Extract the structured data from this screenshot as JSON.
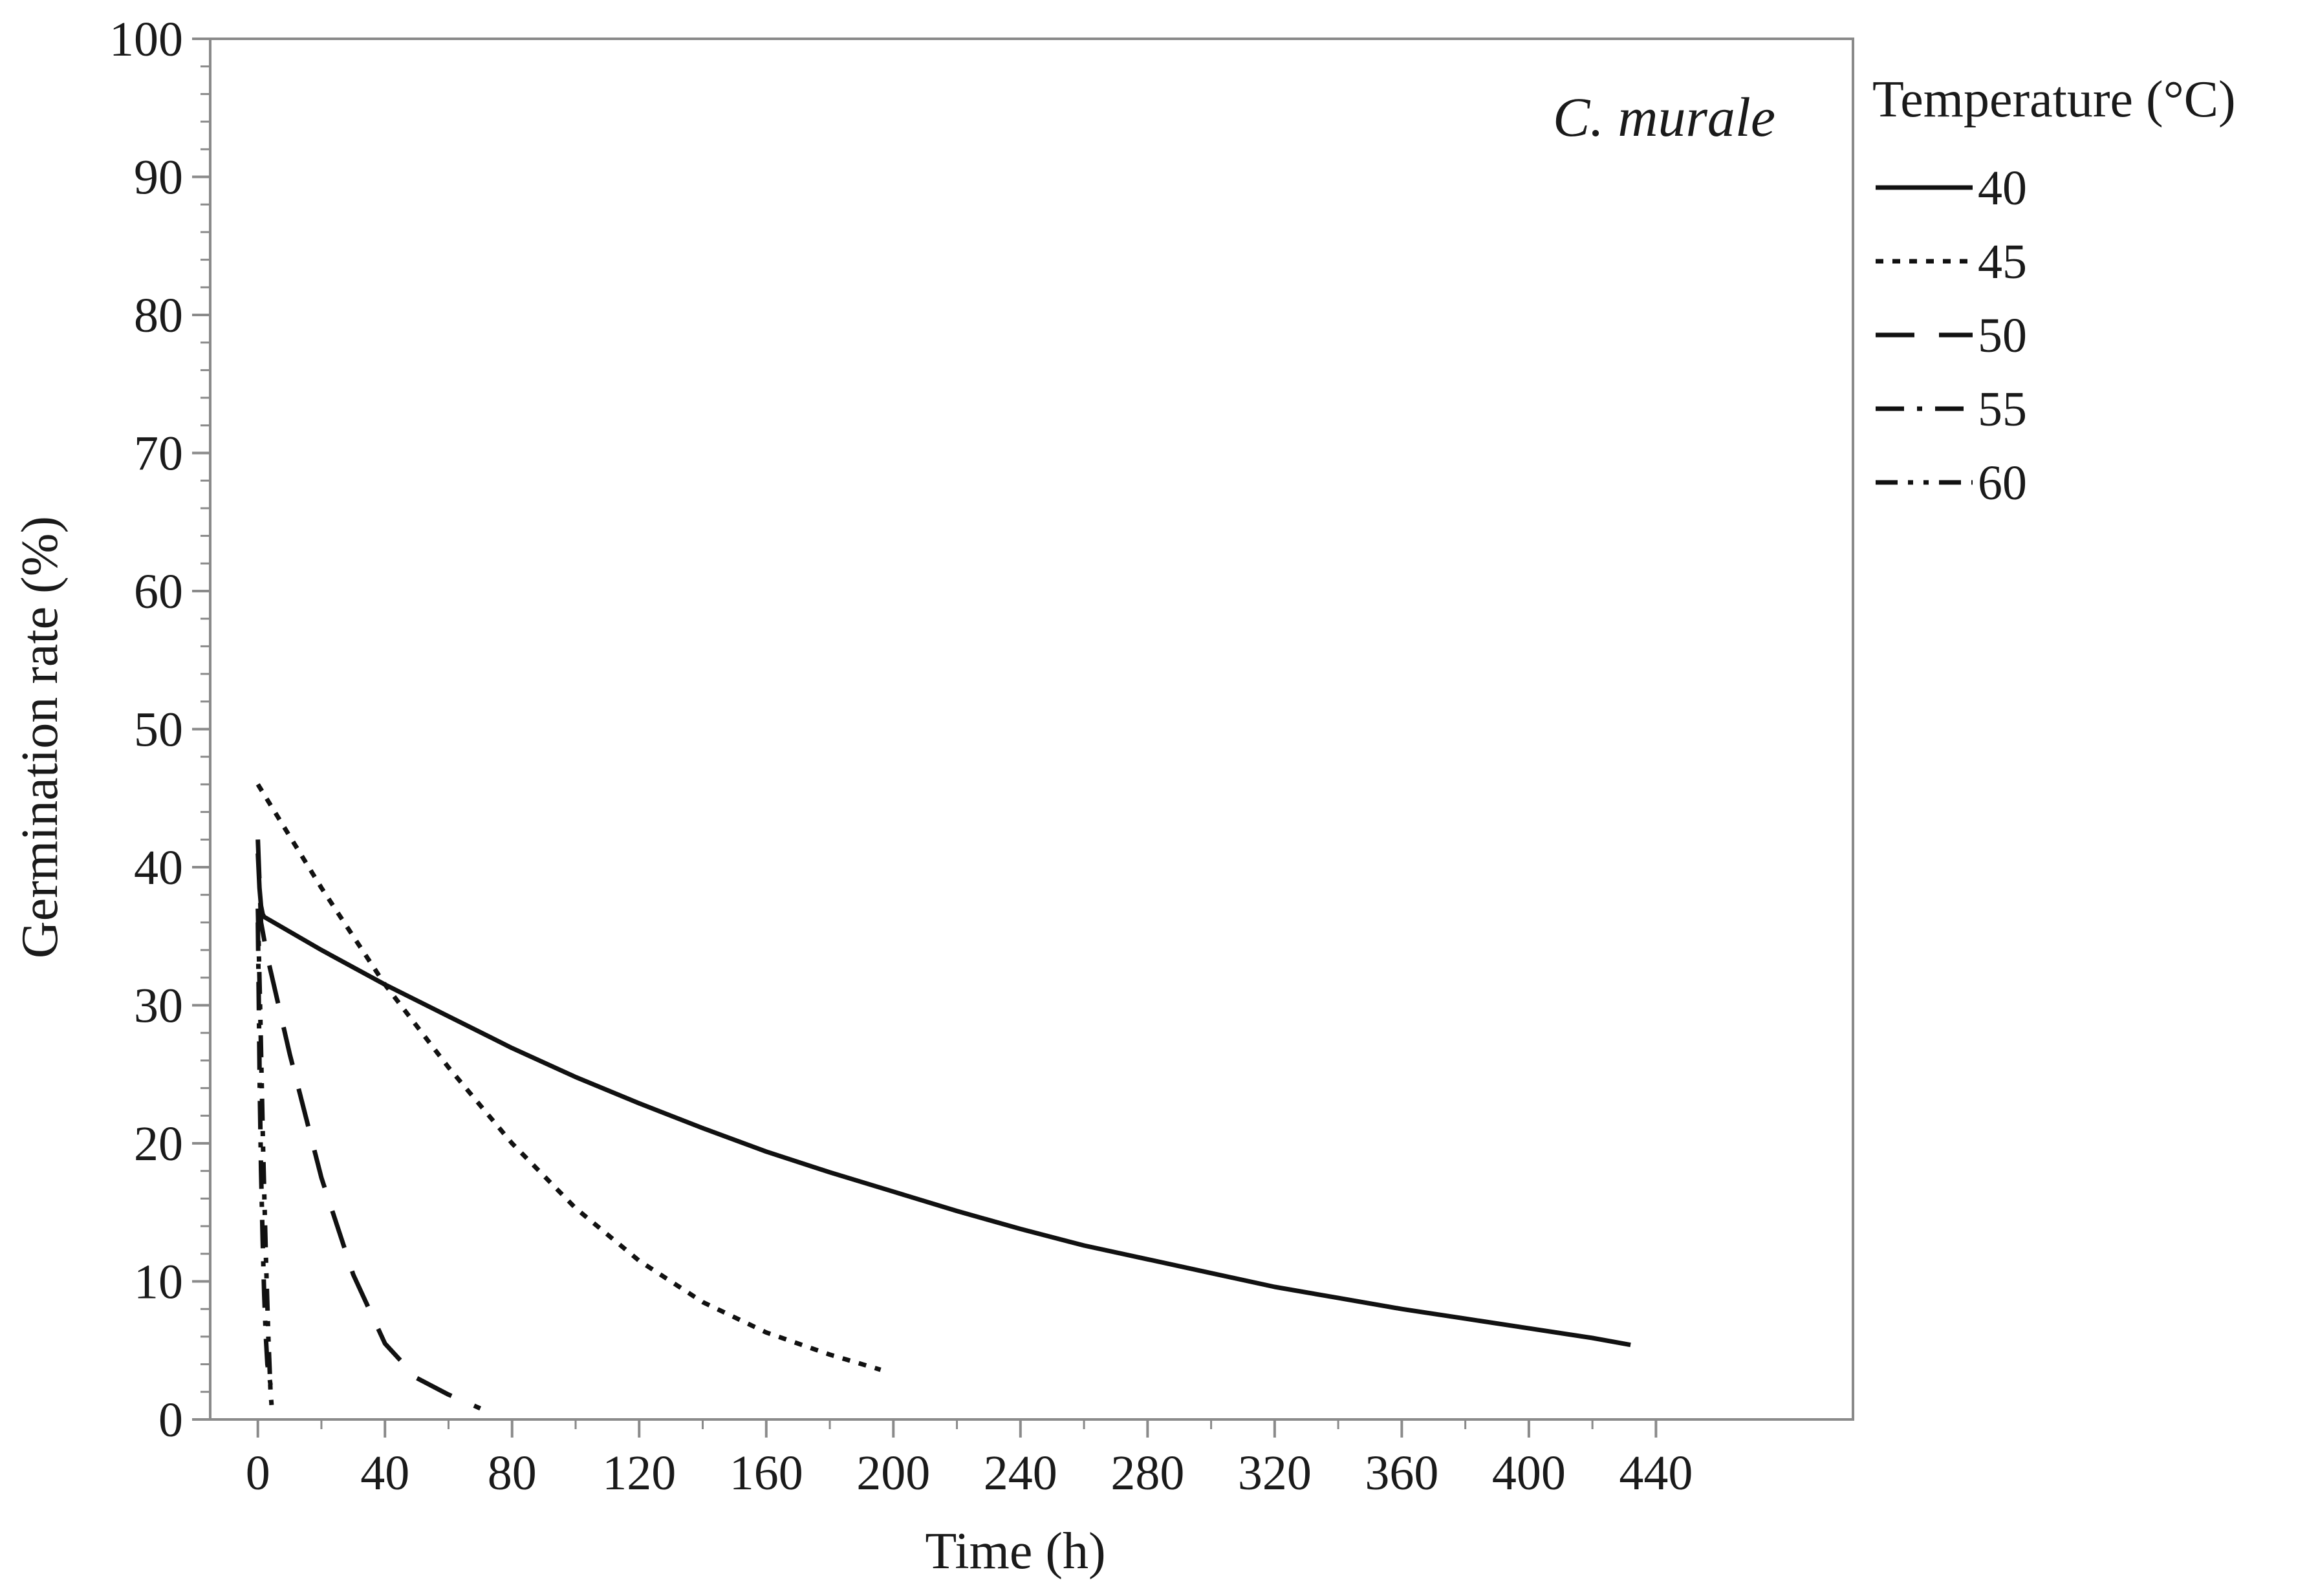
{
  "chart_data": {
    "type": "line",
    "title": "",
    "annotation": "C. murale",
    "xlabel": "Time (h)",
    "ylabel": "Germination rate (%)",
    "xlim": [
      -15,
      502
    ],
    "ylim": [
      0,
      100
    ],
    "xticks": [
      0,
      40,
      80,
      120,
      160,
      200,
      240,
      280,
      320,
      360,
      400,
      440
    ],
    "xminor_step": 20,
    "yticks": [
      0,
      10,
      20,
      30,
      40,
      50,
      60,
      70,
      80,
      90,
      100
    ],
    "yminor_step": 2,
    "grid": false,
    "legend": {
      "title": "Temperature (°C)",
      "position": "right"
    },
    "colors": {
      "line": "#111111",
      "axis": "#8a8a8a",
      "text": "#1a1a1a"
    },
    "series": [
      {
        "name": "40",
        "style": "solid",
        "x": [
          0,
          0.5,
          1,
          1.5,
          2,
          20,
          40,
          60,
          80,
          100,
          120,
          140,
          160,
          180,
          200,
          220,
          240,
          260,
          280,
          300,
          320,
          340,
          360,
          380,
          400,
          420,
          432
        ],
        "y": [
          41,
          38.5,
          37.2,
          36.6,
          36.4,
          34.0,
          31.5,
          29.2,
          26.9,
          24.8,
          22.9,
          21.1,
          19.4,
          17.9,
          16.5,
          15.1,
          13.8,
          12.6,
          11.6,
          10.6,
          9.6,
          8.8,
          8.0,
          7.3,
          6.6,
          5.9,
          5.4
        ]
      },
      {
        "name": "45",
        "style": "dotted",
        "x": [
          0,
          20,
          40,
          60,
          80,
          100,
          120,
          140,
          160,
          180,
          196
        ],
        "y": [
          46,
          38.5,
          31.5,
          25.5,
          20.0,
          15.3,
          11.5,
          8.5,
          6.3,
          4.7,
          3.6
        ]
      },
      {
        "name": "50",
        "style": "dashed",
        "x": [
          0,
          1,
          3,
          5,
          10,
          20,
          30,
          40,
          50,
          60,
          70
        ],
        "y": [
          42,
          36,
          33.5,
          31.5,
          26.5,
          17.5,
          10.5,
          5.5,
          3.0,
          1.8,
          0.8
        ]
      },
      {
        "name": "55",
        "style": "dash-dot",
        "x": [
          0,
          0.3,
          0.6,
          1,
          1.5,
          2,
          2.5,
          3,
          4
        ],
        "y": [
          36,
          30,
          24,
          18,
          13,
          9,
          6,
          4,
          2.5
        ]
      },
      {
        "name": "60",
        "style": "dash-dot-dot",
        "x": [
          0,
          0.8,
          1.6,
          2.5,
          3.3,
          4,
          4.5
        ],
        "y": [
          37,
          29,
          20,
          12,
          6,
          2,
          0.5
        ]
      }
    ]
  }
}
